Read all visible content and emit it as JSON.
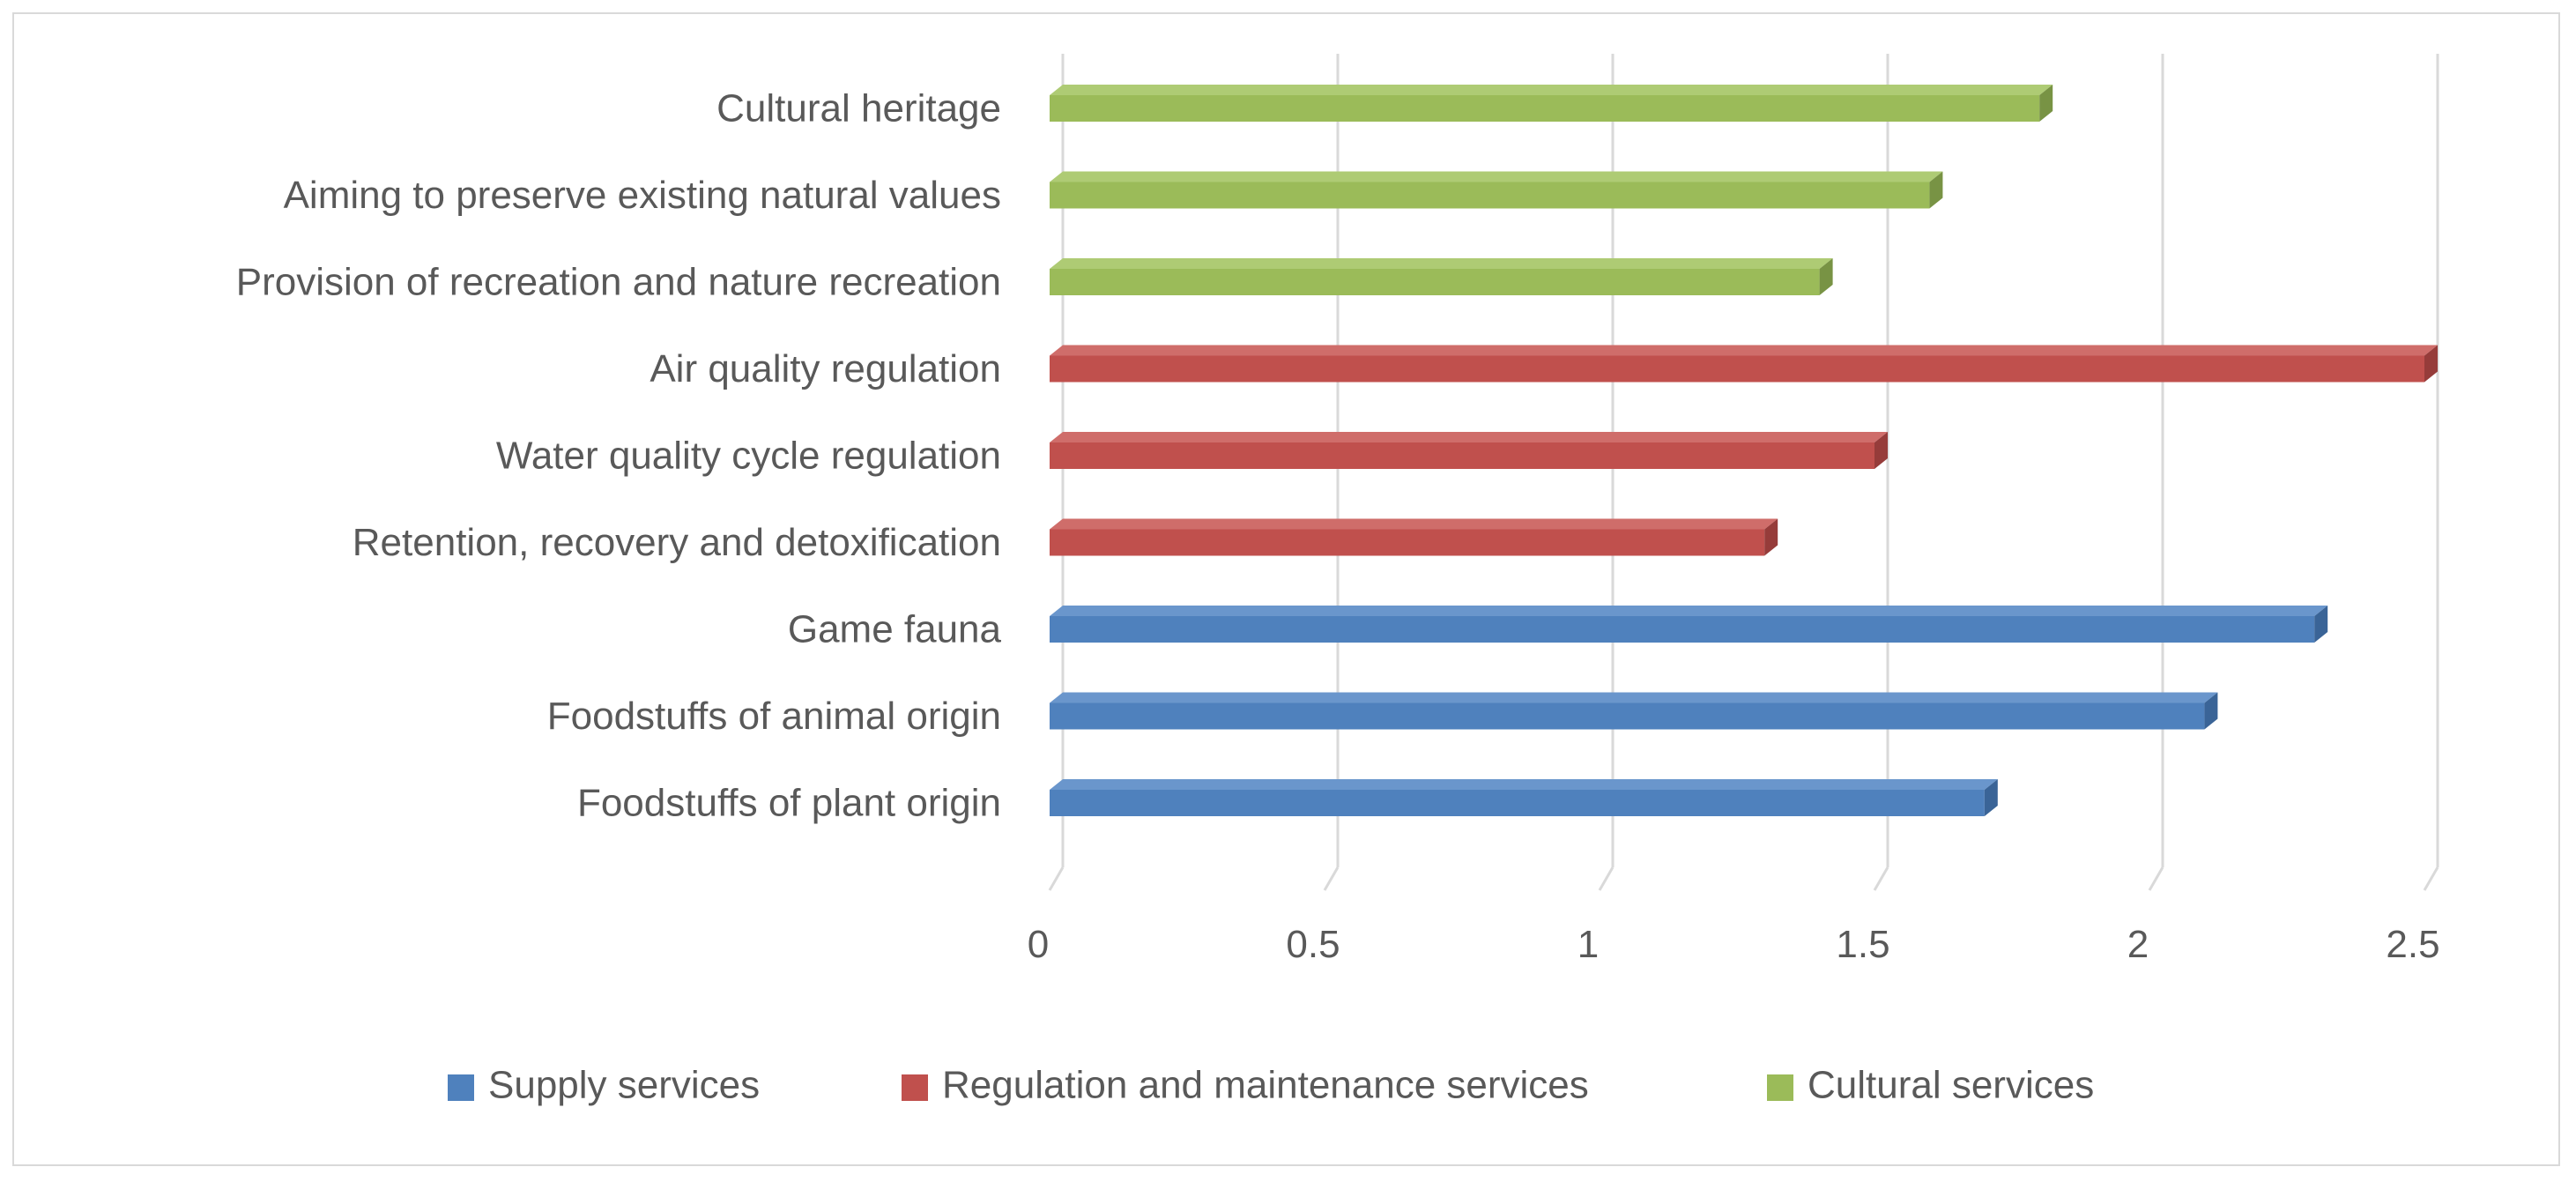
{
  "chart_data": {
    "type": "bar",
    "orientation": "horizontal",
    "title": "",
    "xlabel": "",
    "ylabel": "",
    "xlim": [
      0,
      2.5
    ],
    "xticks": [
      "0",
      "0.5",
      "1",
      "1.5",
      "2",
      "2.5"
    ],
    "grid": true,
    "legend_position": "bottom",
    "categories": [
      "Foodstuffs of plant origin",
      "Foodstuffs of animal origin",
      "Game fauna",
      "Retention, recovery and detoxification",
      "Water quality cycle regulation",
      "Air quality regulation",
      "Provision of recreation and nature recreation",
      "Aiming to preserve existing natural values",
      "Cultural heritage"
    ],
    "values": [
      1.7,
      2.1,
      2.3,
      1.3,
      1.5,
      2.5,
      1.4,
      1.6,
      1.8
    ],
    "bar_series": [
      0,
      0,
      0,
      1,
      1,
      1,
      2,
      2,
      2
    ],
    "series": [
      {
        "name": "Supply services",
        "color": "#4f81bd",
        "top_color": "#6a96cc",
        "end_color": "#3a6497"
      },
      {
        "name": "Regulation and maintenance services",
        "color": "#c0504d",
        "top_color": "#cf6d6a",
        "end_color": "#963c3a"
      },
      {
        "name": "Cultural services",
        "color": "#9bbb59",
        "top_color": "#aecb74",
        "end_color": "#789344"
      }
    ]
  }
}
